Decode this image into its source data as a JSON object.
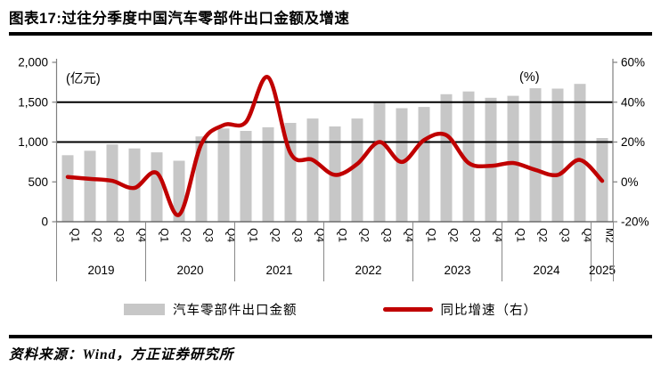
{
  "title": "图表17:过往分季度中国汽车零部件出口金额及增速",
  "source": "资料来源：Wind，方正证券研究所",
  "colors": {
    "bar": "#C7C7C7",
    "line": "#C00000",
    "gridline": "#000000",
    "axis": "#7f7f7f",
    "text": "#000000"
  },
  "legend": {
    "items": [
      {
        "label": "汽车零部件出口金额",
        "type": "bar"
      },
      {
        "label": "同比增速（右）",
        "type": "line"
      }
    ]
  },
  "chart_data": {
    "type": "bar",
    "title": "过往分季度中国汽车零部件出口金额及增速",
    "categories": [
      "Q1",
      "Q2",
      "Q3",
      "Q4",
      "Q1",
      "Q2",
      "Q3",
      "Q4",
      "Q1",
      "Q2",
      "Q3",
      "Q4",
      "Q1",
      "Q2",
      "Q3",
      "Q4",
      "Q1",
      "Q2",
      "Q3",
      "Q4",
      "Q1",
      "Q2",
      "Q3",
      "Q4",
      "M2"
    ],
    "year_groups": [
      {
        "label": "2019",
        "count": 4
      },
      {
        "label": "2020",
        "count": 4
      },
      {
        "label": "2021",
        "count": 4
      },
      {
        "label": "2022",
        "count": 4
      },
      {
        "label": "2023",
        "count": 4
      },
      {
        "label": "2024",
        "count": 4
      },
      {
        "label": "2025",
        "count": 1
      }
    ],
    "series": [
      {
        "name": "汽车零部件出口金额",
        "type": "bar",
        "axis": "left",
        "unit": "亿元",
        "values": [
          835,
          890,
          970,
          920,
          870,
          765,
          1070,
          1170,
          1140,
          1185,
          1240,
          1295,
          1195,
          1295,
          1500,
          1425,
          1440,
          1600,
          1635,
          1555,
          1580,
          1675,
          1670,
          1730,
          1050
        ]
      },
      {
        "name": "同比增速（右）",
        "type": "line",
        "axis": "right",
        "unit": "%",
        "values": [
          2.5,
          1.5,
          0.5,
          -3,
          4.5,
          -16.5,
          19,
          28.5,
          30,
          52.5,
          14.5,
          11,
          3.5,
          9,
          20,
          10,
          21,
          23.5,
          9.5,
          8,
          9.5,
          6,
          3.5,
          11,
          0.5
        ]
      }
    ],
    "left_axis": {
      "label": "(亿元)",
      "min": 0,
      "max": 2000,
      "ticks": [
        "2,000",
        "1,500",
        "1,000",
        "500",
        "0"
      ]
    },
    "right_axis": {
      "label": "(%)",
      "min": -20,
      "max": 60,
      "ticks": [
        "60%",
        "40%",
        "20%",
        "0%",
        "-20%"
      ]
    },
    "gridlines_right_pct": [
      40,
      20
    ],
    "legend_position": "bottom",
    "grid": "two horizontal black lines only"
  }
}
